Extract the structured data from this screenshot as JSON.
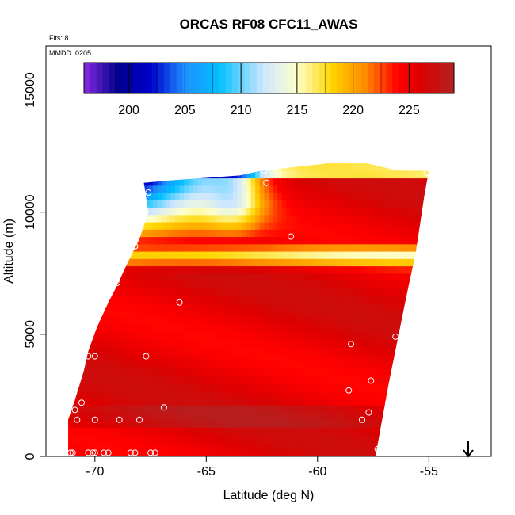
{
  "chart_data": {
    "type": "heatmap",
    "title": "ORCAS RF08 CFC11_AWAS",
    "flights_note": "Flts: 8",
    "date_note": "MMDD: 0205",
    "xlabel": "Latitude (deg N)",
    "ylabel": "Altitude (m)",
    "xlim": [
      -72.2,
      -52.2
    ],
    "ylim": [
      0,
      16800
    ],
    "x_ticks": [
      -70,
      -65,
      -60,
      -55
    ],
    "x_tick_labels": [
      "-70",
      "-65",
      "-60",
      "-55"
    ],
    "y_ticks": [
      0,
      5000,
      10000,
      15000
    ],
    "y_tick_labels": [
      "0",
      "5000",
      "10000",
      "15000"
    ],
    "colorbar": {
      "range": [
        196,
        229
      ],
      "ticks": [
        200,
        205,
        210,
        215,
        220,
        225
      ],
      "tick_labels": [
        "200",
        "205",
        "210",
        "215",
        "220",
        "225"
      ],
      "stops": [
        {
          "v": 196,
          "c": "#8a2be2"
        },
        {
          "v": 199,
          "c": "#00008b"
        },
        {
          "v": 202,
          "c": "#0000cd"
        },
        {
          "v": 205,
          "c": "#1e90ff"
        },
        {
          "v": 208,
          "c": "#00bfff"
        },
        {
          "v": 212,
          "c": "#cde6ff"
        },
        {
          "v": 215,
          "c": "#ffffcc"
        },
        {
          "v": 218,
          "c": "#ffd700"
        },
        {
          "v": 221,
          "c": "#ff8c00"
        },
        {
          "v": 224,
          "c": "#ff0000"
        },
        {
          "v": 226,
          "c": "#dd0000"
        },
        {
          "v": 229,
          "c": "#b22222"
        }
      ]
    },
    "domain_edges": {
      "left": [
        [
          -71.2,
          0
        ],
        [
          -71.2,
          1500
        ],
        [
          -70.9,
          2300
        ],
        [
          -70.5,
          3500
        ],
        [
          -70.3,
          4300
        ],
        [
          -69.9,
          5300
        ],
        [
          -69.4,
          6300
        ],
        [
          -69.0,
          7000
        ],
        [
          -68.6,
          7800
        ],
        [
          -68.0,
          8900
        ],
        [
          -67.6,
          10000
        ],
        [
          -67.8,
          11200
        ]
      ],
      "right": [
        [
          -57.4,
          0
        ],
        [
          -57.1,
          1500
        ],
        [
          -56.8,
          3000
        ],
        [
          -56.4,
          4800
        ],
        [
          -56.0,
          6600
        ],
        [
          -55.6,
          8300
        ],
        [
          -55.4,
          9500
        ],
        [
          -55.2,
          10700
        ],
        [
          -55.0,
          11700
        ]
      ],
      "top": [
        [
          -67.8,
          11200
        ],
        [
          -66.6,
          11300
        ],
        [
          -65.0,
          11400
        ],
        [
          -63.5,
          11500
        ],
        [
          -62.5,
          11700
        ],
        [
          -61.0,
          11850
        ],
        [
          -59.5,
          12000
        ],
        [
          -57.8,
          12000
        ],
        [
          -56.4,
          11700
        ],
        [
          -55.0,
          11700
        ]
      ]
    },
    "samples": [
      {
        "lat": -71.1,
        "alt": 150
      },
      {
        "lat": -71.0,
        "alt": 150
      },
      {
        "lat": -70.3,
        "alt": 150
      },
      {
        "lat": -70.1,
        "alt": 150
      },
      {
        "lat": -70.0,
        "alt": 150
      },
      {
        "lat": -69.6,
        "alt": 150
      },
      {
        "lat": -69.4,
        "alt": 150
      },
      {
        "lat": -68.4,
        "alt": 150
      },
      {
        "lat": -68.2,
        "alt": 150
      },
      {
        "lat": -67.5,
        "alt": 150
      },
      {
        "lat": -67.3,
        "alt": 150
      },
      {
        "lat": -70.8,
        "alt": 1500
      },
      {
        "lat": -70.0,
        "alt": 1500
      },
      {
        "lat": -68.9,
        "alt": 1500
      },
      {
        "lat": -68.0,
        "alt": 1500
      },
      {
        "lat": -70.9,
        "alt": 1900
      },
      {
        "lat": -70.6,
        "alt": 2200
      },
      {
        "lat": -66.9,
        "alt": 2000
      },
      {
        "lat": -70.5,
        "alt": 4100
      },
      {
        "lat": -70.3,
        "alt": 4100
      },
      {
        "lat": -70.0,
        "alt": 4100
      },
      {
        "lat": -67.7,
        "alt": 4100
      },
      {
        "lat": -69.0,
        "alt": 7100
      },
      {
        "lat": -66.2,
        "alt": 6300
      },
      {
        "lat": -67.9,
        "alt": 9700
      },
      {
        "lat": -67.6,
        "alt": 10800
      },
      {
        "lat": -68.2,
        "alt": 8600
      },
      {
        "lat": -62.3,
        "alt": 11200
      },
      {
        "lat": -62.4,
        "alt": 11700
      },
      {
        "lat": -61.2,
        "alt": 9000
      },
      {
        "lat": -58.5,
        "alt": 4600
      },
      {
        "lat": -57.6,
        "alt": 3100
      },
      {
        "lat": -57.7,
        "alt": 1800
      },
      {
        "lat": -58.0,
        "alt": 1500
      },
      {
        "lat": -58.6,
        "alt": 2700
      },
      {
        "lat": -56.5,
        "alt": 4900
      },
      {
        "lat": -55.4,
        "alt": 8000
      },
      {
        "lat": -55.1,
        "alt": 11600
      },
      {
        "lat": -57.3,
        "alt": 300
      },
      {
        "lat": -57.2,
        "alt": 300
      }
    ]
  }
}
